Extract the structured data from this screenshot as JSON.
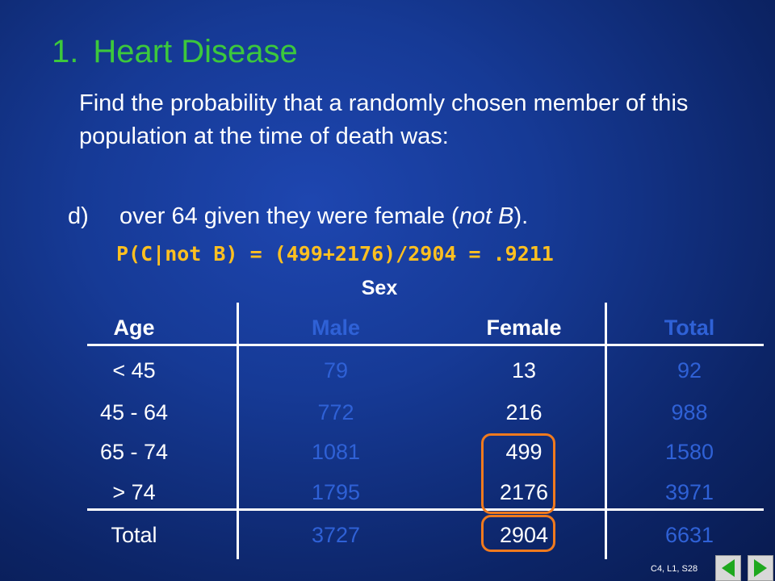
{
  "title": {
    "number": "1.",
    "text": "Heart Disease"
  },
  "intro": "Find the probability that a randomly chosen member of this population at the time of death was:",
  "item": {
    "letter": "d)",
    "text": "over 64 given they were female (",
    "italic": "not B",
    "text_end": ")."
  },
  "formula": "P(C|not B) = (499+2176)/2904 = .9211",
  "table": {
    "group_header": "Sex",
    "headers": [
      "Age",
      "Male",
      "Female",
      "Total"
    ],
    "rows": [
      [
        "< 45",
        "79",
        "13",
        "92"
      ],
      [
        "45 - 64",
        "772",
        "216",
        "988"
      ],
      [
        "65 - 74",
        "1081",
        "499",
        "1580"
      ],
      [
        "> 74",
        "1795",
        "2176",
        "3971"
      ]
    ],
    "total_row": [
      "Total",
      "3727",
      "2904",
      "6631"
    ]
  },
  "footer": "C4, L1, S28",
  "colors": {
    "title": "#3cc83c",
    "formula": "#ffc020",
    "male_total_columns": "#2f61d6",
    "highlight_circle": "#f07a1e",
    "nav_arrow": "#1ea81e"
  },
  "icons": {
    "prev": "prev-arrow-icon",
    "next": "next-arrow-icon"
  }
}
